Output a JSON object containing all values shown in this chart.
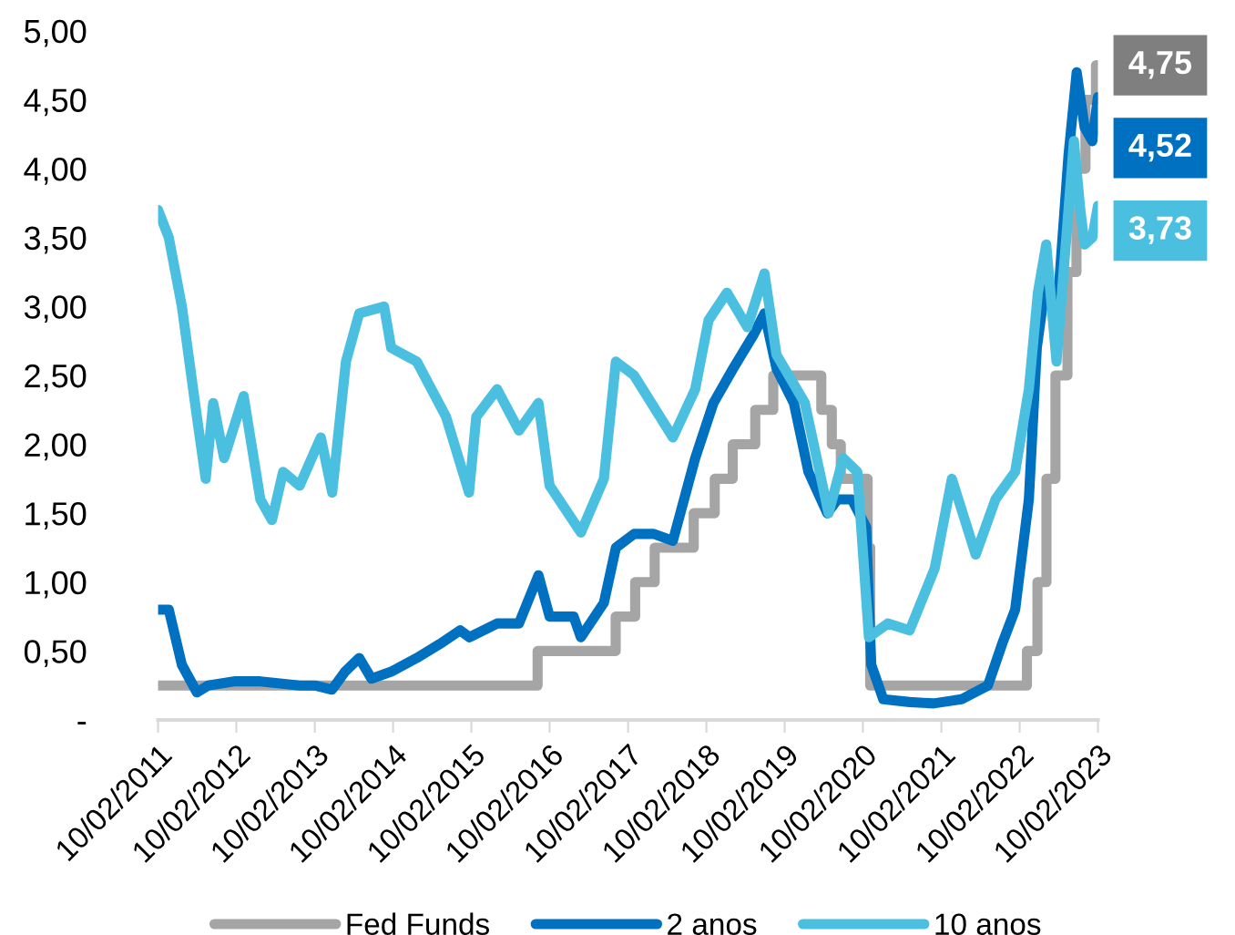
{
  "chart_data": {
    "type": "line",
    "xlim": [
      "2011-02-10",
      "2023-02-10"
    ],
    "xticks": [
      {
        "value": "2011-02-10",
        "label": "10/02/2011"
      },
      {
        "value": "2012-02-10",
        "label": "10/02/2012"
      },
      {
        "value": "2013-02-10",
        "label": "10/02/2013"
      },
      {
        "value": "2014-02-10",
        "label": "10/02/2014"
      },
      {
        "value": "2015-02-10",
        "label": "10/02/2015"
      },
      {
        "value": "2016-02-10",
        "label": "10/02/2016"
      },
      {
        "value": "2017-02-10",
        "label": "10/02/2017"
      },
      {
        "value": "2018-02-10",
        "label": "10/02/2018"
      },
      {
        "value": "2019-02-10",
        "label": "10/02/2019"
      },
      {
        "value": "2020-02-10",
        "label": "10/02/2020"
      },
      {
        "value": "2021-02-10",
        "label": "10/02/2021"
      },
      {
        "value": "2022-02-10",
        "label": "10/02/2022"
      },
      {
        "value": "2023-02-10",
        "label": "10/02/2023"
      }
    ],
    "ylim": [
      0,
      5
    ],
    "yticks": [
      {
        "value": 0,
        "label": "-"
      },
      {
        "value": 0.5,
        "label": "0,50"
      },
      {
        "value": 1,
        "label": "1,00"
      },
      {
        "value": 1.5,
        "label": "1,50"
      },
      {
        "value": 2,
        "label": "2,00"
      },
      {
        "value": 2.5,
        "label": "2,50"
      },
      {
        "value": 3,
        "label": "3,00"
      },
      {
        "value": 3.5,
        "label": "3,50"
      },
      {
        "value": 4,
        "label": "4,00"
      },
      {
        "value": 4.5,
        "label": "4,50"
      },
      {
        "value": 5,
        "label": "5,00"
      }
    ],
    "grid": false,
    "legend": "bottom",
    "series": [
      {
        "name": "Fed Funds",
        "type": "step",
        "color": "#a5a5a5",
        "x": [
          "2011-02-10",
          "2015-12-16",
          "2016-12-14",
          "2017-03-15",
          "2017-06-14",
          "2017-12-13",
          "2018-03-21",
          "2018-06-13",
          "2018-09-26",
          "2018-12-19",
          "2019-07-31",
          "2019-09-18",
          "2019-10-30",
          "2020-03-03",
          "2020-03-15",
          "2022-03-16",
          "2022-05-04",
          "2022-06-15",
          "2022-07-27",
          "2022-09-21",
          "2022-11-02",
          "2022-12-14",
          "2023-02-01",
          "2023-02-10"
        ],
        "values": [
          0.25,
          0.5,
          0.75,
          1.0,
          1.25,
          1.5,
          1.75,
          2.0,
          2.25,
          2.5,
          2.25,
          2.0,
          1.75,
          1.25,
          0.25,
          0.5,
          1.0,
          1.75,
          2.5,
          3.25,
          4.0,
          4.5,
          4.75,
          4.75
        ]
      },
      {
        "name": "2 anos",
        "color": "#0070c0",
        "x": [
          "2011-02-10",
          "2011-04-01",
          "2011-06-01",
          "2011-08-10",
          "2011-10-01",
          "2012-02-01",
          "2012-06-01",
          "2012-12-01",
          "2013-02-10",
          "2013-05-01",
          "2013-07-01",
          "2013-09-05",
          "2013-11-01",
          "2014-02-01",
          "2014-06-01",
          "2014-09-15",
          "2014-12-20",
          "2015-02-01",
          "2015-06-10",
          "2015-09-20",
          "2015-12-20",
          "2016-02-10",
          "2016-06-01",
          "2016-07-05",
          "2016-10-20",
          "2016-12-15",
          "2017-03-10",
          "2017-06-10",
          "2017-09-07",
          "2017-12-20",
          "2018-03-15",
          "2018-06-15",
          "2018-09-20",
          "2018-11-08",
          "2019-01-03",
          "2019-03-25",
          "2019-06-01",
          "2019-08-28",
          "2019-10-15",
          "2019-12-20",
          "2020-02-25",
          "2020-03-20",
          "2020-05-15",
          "2020-09-15",
          "2021-01-05",
          "2021-05-15",
          "2021-09-15",
          "2021-11-20",
          "2022-01-20",
          "2022-03-25",
          "2022-05-01",
          "2022-06-14",
          "2022-08-01",
          "2022-09-26",
          "2022-11-03",
          "2022-12-10",
          "2023-01-15",
          "2023-02-10"
        ],
        "values": [
          0.8,
          0.8,
          0.4,
          0.2,
          0.25,
          0.28,
          0.28,
          0.25,
          0.25,
          0.22,
          0.35,
          0.45,
          0.3,
          0.35,
          0.45,
          0.55,
          0.65,
          0.6,
          0.7,
          0.7,
          1.05,
          0.75,
          0.75,
          0.6,
          0.85,
          1.25,
          1.35,
          1.35,
          1.3,
          1.9,
          2.3,
          2.55,
          2.8,
          2.95,
          2.55,
          2.3,
          1.8,
          1.5,
          1.6,
          1.6,
          1.4,
          0.4,
          0.15,
          0.13,
          0.12,
          0.15,
          0.25,
          0.55,
          0.8,
          1.6,
          2.7,
          3.2,
          2.9,
          4.1,
          4.7,
          4.3,
          4.2,
          4.52
        ]
      },
      {
        "name": "10 anos",
        "color": "#4bbfdf",
        "x": [
          "2011-02-10",
          "2011-04-01",
          "2011-06-01",
          "2011-08-10",
          "2011-09-20",
          "2011-10-25",
          "2011-12-15",
          "2012-03-15",
          "2012-06-01",
          "2012-07-25",
          "2012-09-15",
          "2012-12-01",
          "2013-03-10",
          "2013-05-02",
          "2013-07-05",
          "2013-09-05",
          "2013-12-30",
          "2014-02-01",
          "2014-06-01",
          "2014-10-15",
          "2015-01-30",
          "2015-03-05",
          "2015-06-10",
          "2015-09-20",
          "2015-12-20",
          "2016-02-10",
          "2016-07-05",
          "2016-10-20",
          "2016-12-15",
          "2017-03-10",
          "2017-09-07",
          "2017-12-20",
          "2018-02-20",
          "2018-05-17",
          "2018-08-20",
          "2018-11-08",
          "2019-01-03",
          "2019-05-15",
          "2019-09-03",
          "2019-11-10",
          "2020-01-15",
          "2020-03-09",
          "2020-06-05",
          "2020-09-15",
          "2021-01-10",
          "2021-03-31",
          "2021-07-20",
          "2021-10-20",
          "2022-01-20",
          "2022-03-25",
          "2022-05-06",
          "2022-06-14",
          "2022-08-01",
          "2022-10-21",
          "2022-11-20",
          "2022-12-10",
          "2023-01-15",
          "2023-02-10"
        ],
        "values": [
          3.7,
          3.5,
          3.0,
          2.2,
          1.75,
          2.3,
          1.9,
          2.35,
          1.6,
          1.45,
          1.8,
          1.7,
          2.05,
          1.65,
          2.6,
          2.95,
          3.0,
          2.7,
          2.6,
          2.2,
          1.65,
          2.2,
          2.4,
          2.1,
          2.3,
          1.7,
          1.36,
          1.75,
          2.6,
          2.5,
          2.05,
          2.4,
          2.9,
          3.1,
          2.85,
          3.24,
          2.65,
          2.3,
          1.5,
          1.9,
          1.8,
          0.6,
          0.7,
          0.65,
          1.1,
          1.75,
          1.2,
          1.6,
          1.8,
          2.4,
          3.1,
          3.45,
          2.6,
          4.2,
          3.7,
          3.45,
          3.5,
          3.73
        ]
      }
    ],
    "annotations": [
      {
        "text": "4,75",
        "x": "2023-02-10",
        "y": 4.75
      },
      {
        "text": "4,52",
        "x": "2023-02-10",
        "y": 4.52
      },
      {
        "text": "3,73",
        "x": "2023-02-10",
        "y": 3.73
      }
    ]
  }
}
